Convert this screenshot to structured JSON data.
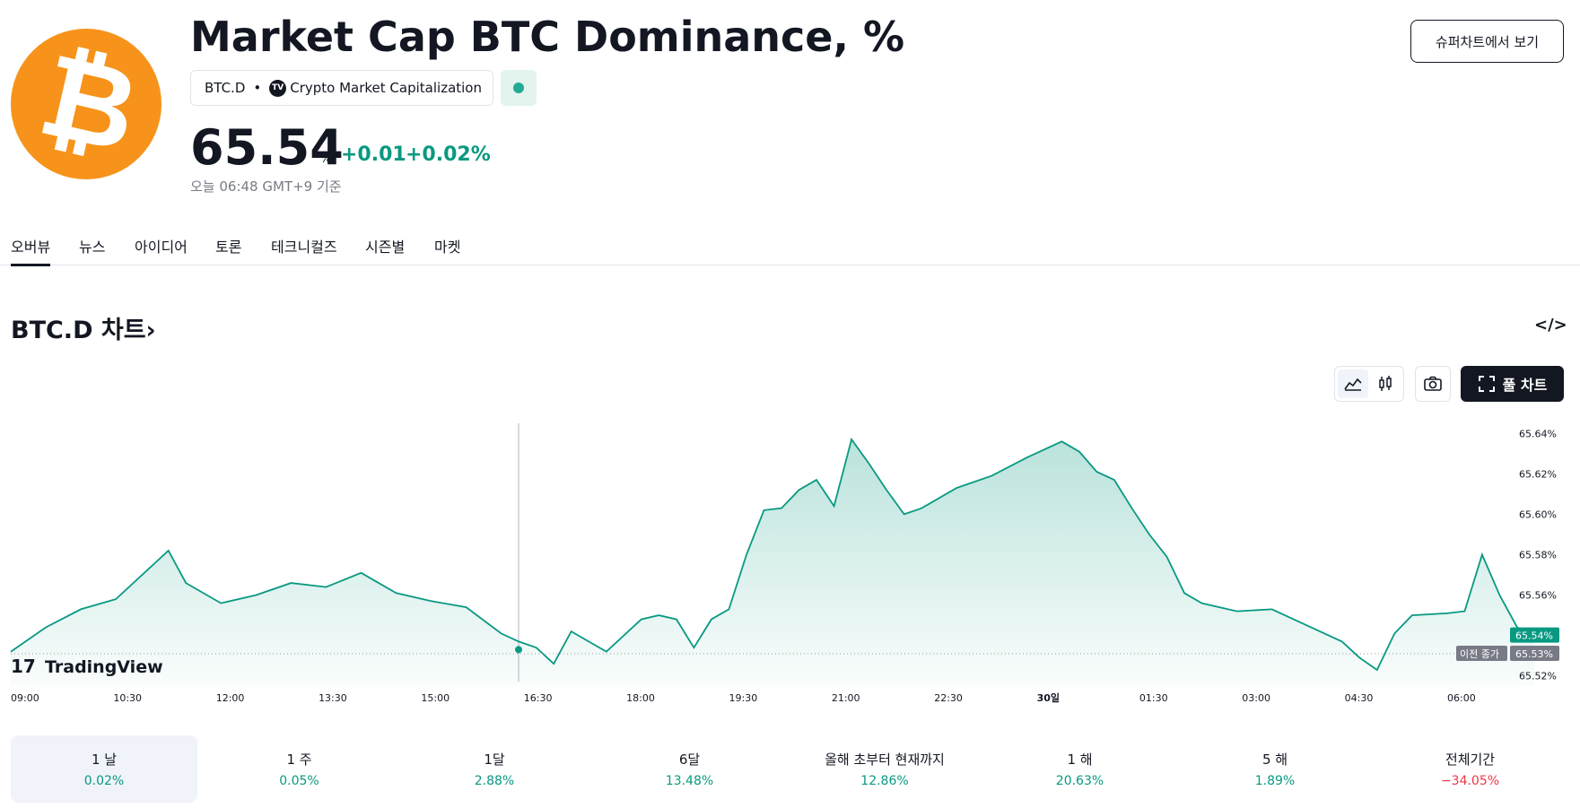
{
  "header": {
    "logo_glyph": "₿",
    "title": "Market Cap BTC Dominance, %",
    "symbol": "BTC.D",
    "source_badge": "TV",
    "source": "Crypto Market Capitalization",
    "price": "65.54",
    "price_unit": "%",
    "change": "+0.01",
    "change_pct": "+0.02%",
    "as_of": "오늘 06:48 GMT+9 기준",
    "super_chart_button": "슈퍼차트에서 보기",
    "market_status_color": "#22ab94"
  },
  "tabs": [
    "오버뷰",
    "뉴스",
    "아이디어",
    "토론",
    "테크니컬즈",
    "시즌별",
    "마켓"
  ],
  "chart_section": {
    "heading": "BTC.D 차트›",
    "embed_label": "</>",
    "full_chart_label": "풀 차트",
    "tools": [
      "area-chart-icon",
      "candles-icon",
      "camera-icon",
      "fullscreen-icon"
    ],
    "watermark": "TradingView"
  },
  "chart_data": {
    "type": "area",
    "x_ticks": [
      "09:00",
      "10:30",
      "12:00",
      "13:30",
      "15:00",
      "16:30",
      "18:00",
      "19:30",
      "21:00",
      "22:30",
      "30일",
      "01:30",
      "03:00",
      "04:30",
      "06:00"
    ],
    "y_ticks": [
      "65.64%",
      "65.62%",
      "65.60%",
      "65.58%",
      "65.56%",
      "65.54%",
      "65.52%"
    ],
    "ylim": [
      65.515,
      65.645
    ],
    "last_value_label": "65.54%",
    "prev_close_label_text": "이전 종가",
    "prev_close_value_label": "65.53%",
    "prev_close": 65.531,
    "line_color": "#089981",
    "series": [
      {
        "x": [
          "09:00",
          "09:30",
          "10:00",
          "10:30",
          "11:00",
          "11:15",
          "11:30",
          "12:00",
          "12:30",
          "13:00",
          "13:30",
          "14:00",
          "14:30",
          "15:00",
          "15:30",
          "16:00",
          "16:15",
          "16:30",
          "16:45",
          "17:00",
          "17:30",
          "18:00",
          "18:15",
          "18:30",
          "18:45",
          "19:00",
          "19:15",
          "19:30",
          "19:45",
          "20:00",
          "20:15",
          "20:30",
          "20:45",
          "21:00",
          "21:15",
          "21:30",
          "21:45",
          "22:00",
          "22:30",
          "23:00",
          "23:30",
          "00:00",
          "00:15",
          "00:30",
          "00:45",
          "01:00",
          "01:15",
          "01:30",
          "01:45",
          "02:00",
          "02:30",
          "03:00",
          "03:30",
          "04:00",
          "04:15",
          "04:30",
          "04:45",
          "05:00",
          "05:30",
          "05:45",
          "06:00",
          "06:15",
          "06:30",
          "06:45"
        ],
        "y": [
          65.532,
          65.544,
          65.553,
          65.558,
          65.574,
          65.582,
          65.566,
          65.556,
          65.56,
          65.566,
          65.564,
          65.571,
          65.561,
          65.557,
          65.554,
          65.541,
          65.537,
          65.534,
          65.526,
          65.542,
          65.532,
          65.548,
          65.55,
          65.548,
          65.534,
          65.548,
          65.553,
          65.58,
          65.602,
          65.603,
          65.612,
          65.617,
          65.604,
          65.637,
          65.625,
          65.612,
          65.6,
          65.603,
          65.613,
          65.619,
          65.628,
          65.636,
          65.631,
          65.621,
          65.617,
          65.603,
          65.59,
          65.579,
          65.561,
          65.556,
          65.552,
          65.553,
          65.545,
          65.537,
          65.529,
          65.523,
          65.541,
          65.55,
          65.551,
          65.552,
          65.58,
          65.56,
          65.544,
          65.54
        ]
      }
    ]
  },
  "periods": [
    {
      "label": "1 날",
      "value": "0.02%",
      "positive": true,
      "selected": true
    },
    {
      "label": "1 주",
      "value": "0.05%",
      "positive": true,
      "selected": false
    },
    {
      "label": "1달",
      "value": "2.88%",
      "positive": true,
      "selected": false
    },
    {
      "label": "6달",
      "value": "13.48%",
      "positive": true,
      "selected": false
    },
    {
      "label": "올해 초부터 현재까지",
      "value": "12.86%",
      "positive": true,
      "selected": false
    },
    {
      "label": "1 해",
      "value": "20.63%",
      "positive": true,
      "selected": false
    },
    {
      "label": "5 해",
      "value": "1.89%",
      "positive": true,
      "selected": false
    },
    {
      "label": "전체기간",
      "value": "−34.05%",
      "positive": false,
      "selected": false
    }
  ],
  "colors": {
    "positive": "#089981",
    "negative": "#f23645",
    "text": "#131722",
    "muted": "#787b86"
  }
}
